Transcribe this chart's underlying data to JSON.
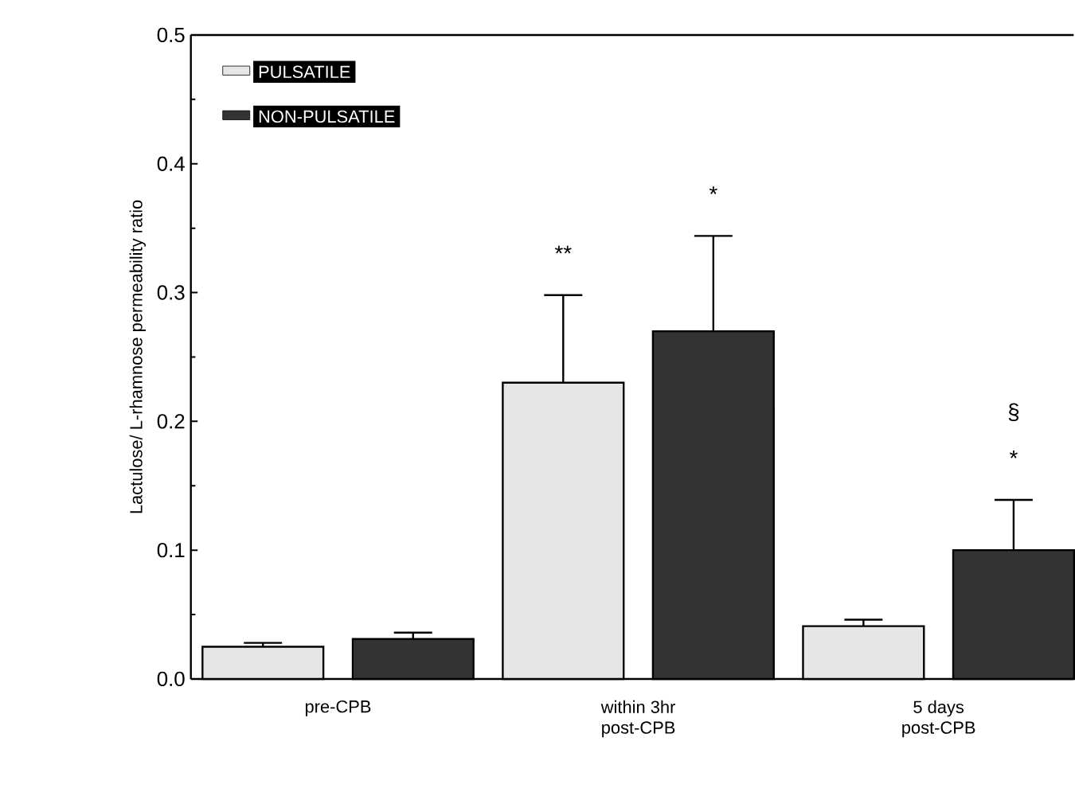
{
  "chart_data": {
    "type": "bar",
    "ylabel": "Lactulose/ L-rhamnose permeability ratio",
    "categories": [
      "pre-CPB",
      "within 3hr\npost-CPB",
      "5 days\npost-CPB"
    ],
    "series": [
      {
        "name": "PULSATILE",
        "color": "#e6e6e6",
        "values": [
          0.025,
          0.23,
          0.041
        ],
        "errors": [
          [
            0.025,
            0.028
          ],
          [
            0.23,
            0.298
          ],
          [
            0.041,
            0.046
          ]
        ]
      },
      {
        "name": "NON-PULSATILE",
        "color": "#333333",
        "values": [
          0.031,
          0.27,
          0.1
        ],
        "errors": [
          [
            0.031,
            0.036
          ],
          [
            0.27,
            0.344
          ],
          [
            0.1,
            0.139
          ]
        ]
      }
    ],
    "ylim": [
      0,
      0.5
    ],
    "yticks": [
      {
        "value": 0,
        "label": "0.0"
      },
      0.1,
      0.2,
      0.3,
      0.4,
      0.5
    ],
    "annotations": [
      "**",
      "*",
      "*",
      "§"
    ],
    "legend": "top left",
    "grid": false
  }
}
